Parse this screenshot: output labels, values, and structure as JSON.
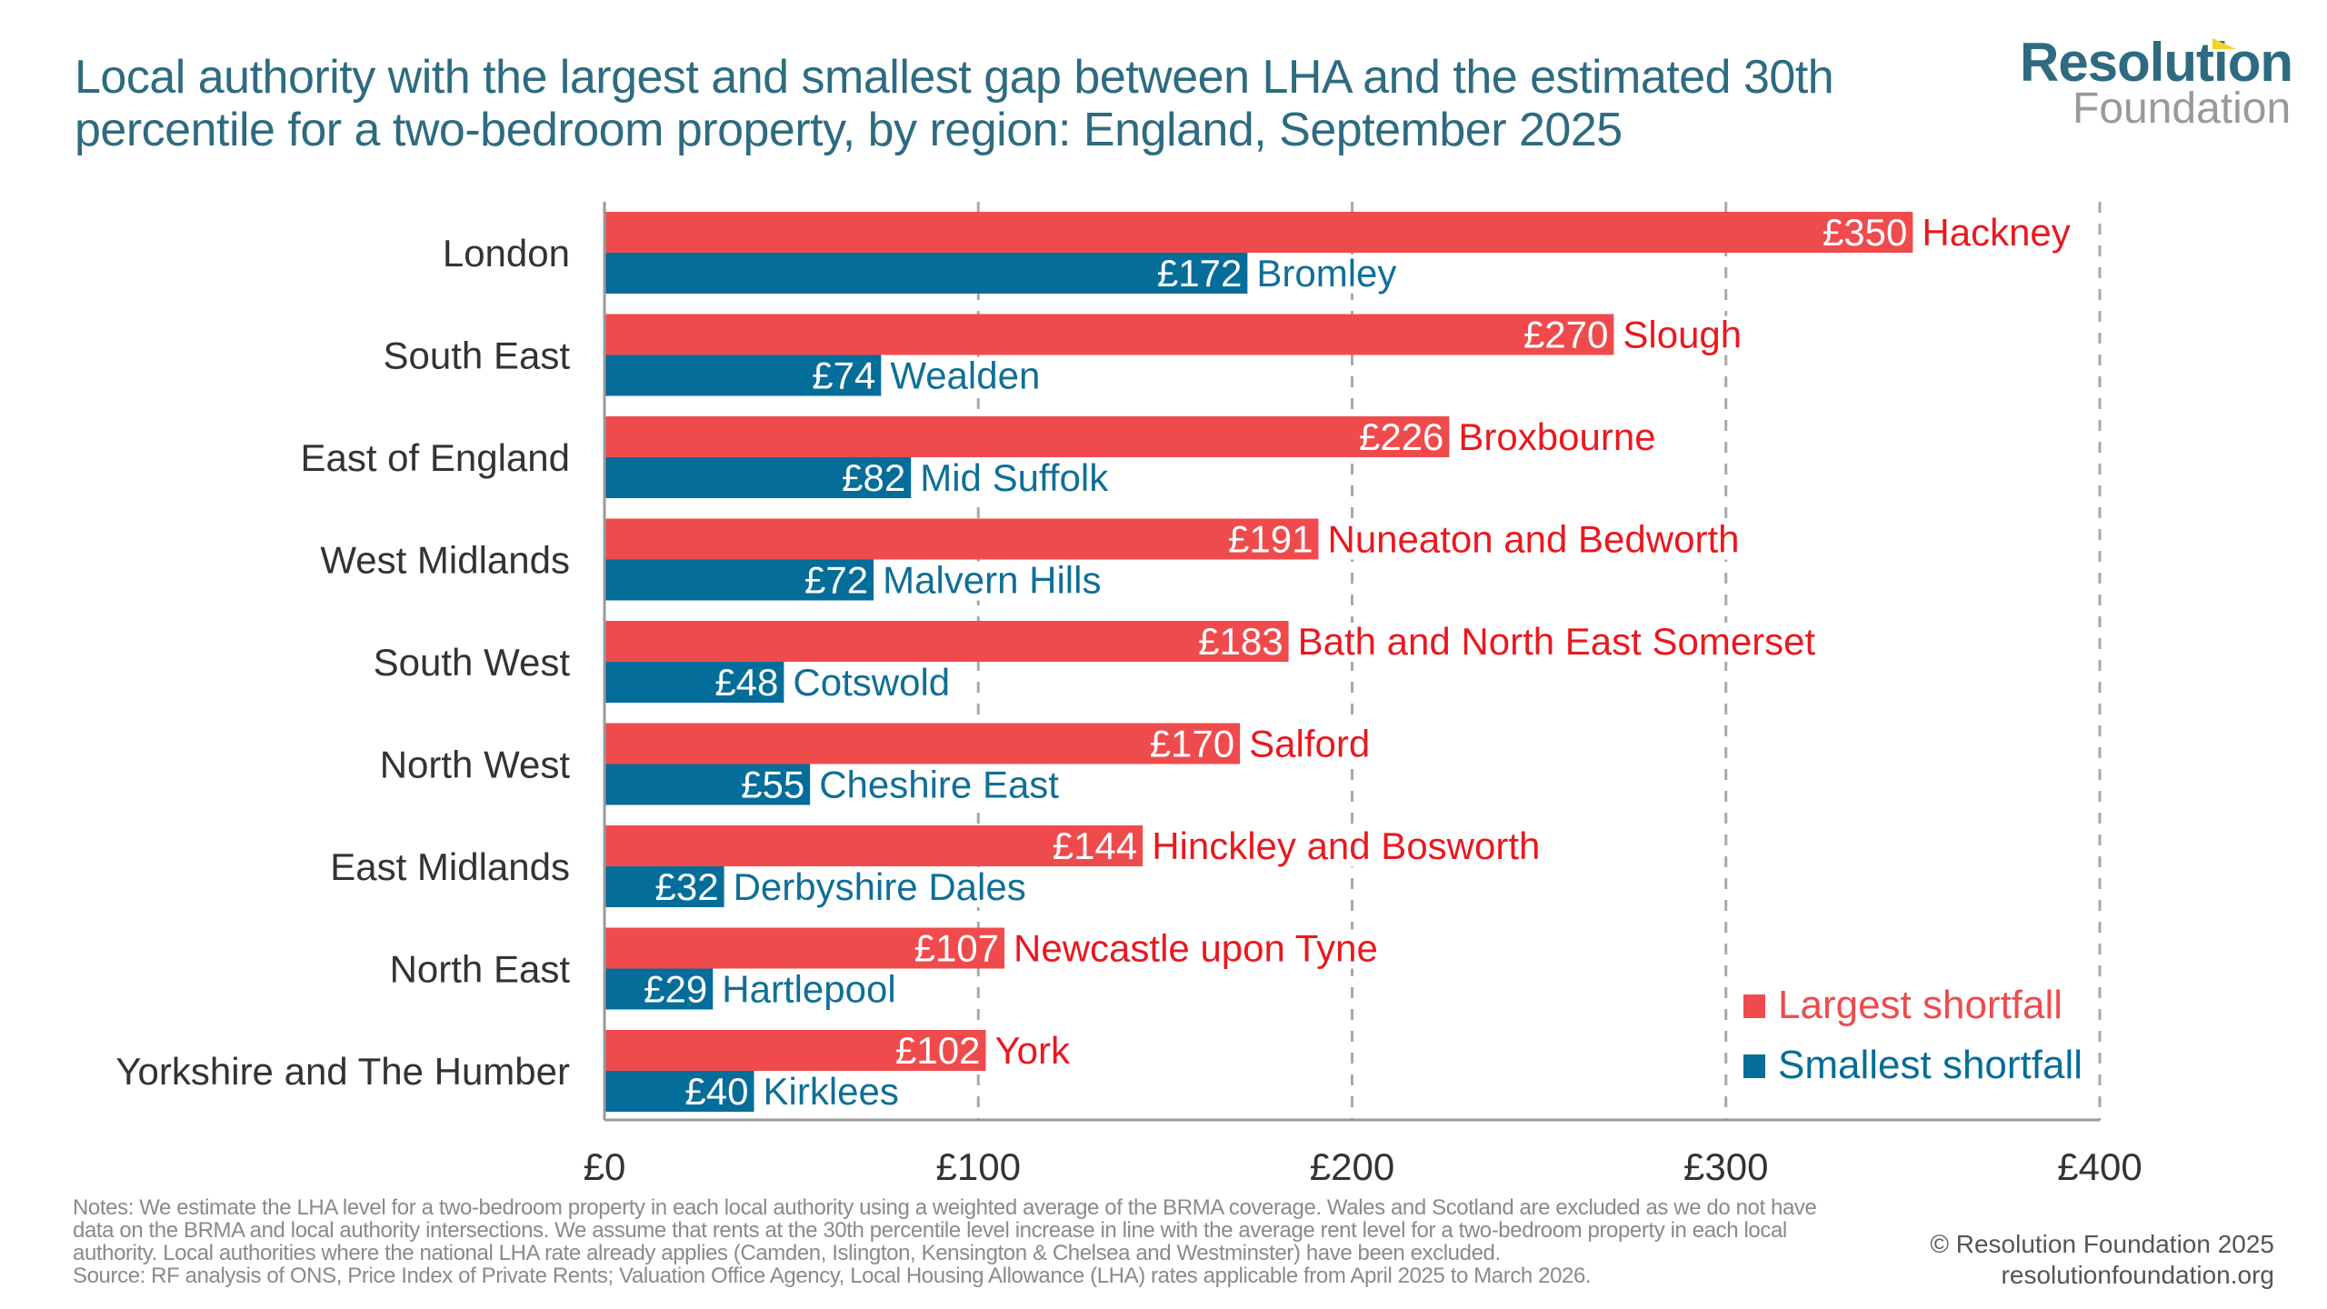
{
  "header": {
    "title_line1": "Local authority with the largest and smallest gap between LHA and the estimated 30th",
    "title_line2": "percentile for a two-bedroom property, by region: England, September 2025"
  },
  "logo": {
    "word1": "Resolution",
    "word2": "Foundation",
    "primary_color": "#2e6b80",
    "secondary_color": "#999999",
    "accent_color": "#f5d22b"
  },
  "footer": {
    "notes_line1": "Notes: We estimate the LHA level for a two-bedroom property in each local authority using a weighted average of the BRMA coverage. Wales and Scotland are excluded as we do not have",
    "notes_line2": "data on the BRMA and local authority intersections. We assume that rents at the 30th percentile level increase in line with the average rent level for a two-bedroom property in each local",
    "notes_line3": "authority. Local authorities where the national LHA rate already applies (Camden, Islington, Kensington & Chelsea and Westminster) have been excluded.",
    "source": "Source: RF analysis of ONS, Price Index of Private Rents; Valuation Office Agency, Local Housing Allowance (LHA) rates applicable from April 2025 to March 2026.",
    "copyright": "© Resolution Foundation 2025",
    "website": "resolutionfoundation.org"
  },
  "chart_data": {
    "type": "bar",
    "orientation": "horizontal",
    "title": "Local authority with the largest and smallest gap between LHA and the estimated 30th percentile for a two-bedroom property, by region: England, September 2025",
    "xlabel": "",
    "ylabel": "",
    "xlim": [
      0,
      400
    ],
    "xticks": [
      0,
      100,
      200,
      300,
      400
    ],
    "xtick_labels": [
      "£0",
      "£100",
      "£200",
      "£300",
      "£400"
    ],
    "grid": "vertical dashed",
    "value_prefix": "£",
    "categories": [
      "London",
      "South East",
      "East of England",
      "West Midlands",
      "South West",
      "North West",
      "East Midlands",
      "North East",
      "Yorkshire and The Humber"
    ],
    "legend_position": "bottom-right",
    "series": [
      {
        "name": "Largest shortfall",
        "color": "#ef4b4d",
        "label_color": "#e8191f",
        "values": [
          350,
          270,
          226,
          191,
          183,
          170,
          144,
          107,
          102
        ],
        "authorities": [
          "Hackney",
          "Slough",
          "Broxbourne",
          "Nuneaton and Bedworth",
          "Bath and North East Somerset",
          "Salford",
          "Hinckley and Bosworth",
          "Newcastle upon Tyne",
          "York"
        ]
      },
      {
        "name": "Smallest shortfall",
        "color": "#046d9a",
        "label_color": "#0f6f97",
        "values": [
          172,
          74,
          82,
          72,
          48,
          55,
          32,
          29,
          40
        ],
        "authorities": [
          "Bromley",
          "Wealden",
          "Mid Suffolk",
          "Malvern Hills",
          "Cotswold",
          "Cheshire East",
          "Derbyshire Dales",
          "Hartlepool",
          "Kirklees"
        ]
      }
    ]
  }
}
